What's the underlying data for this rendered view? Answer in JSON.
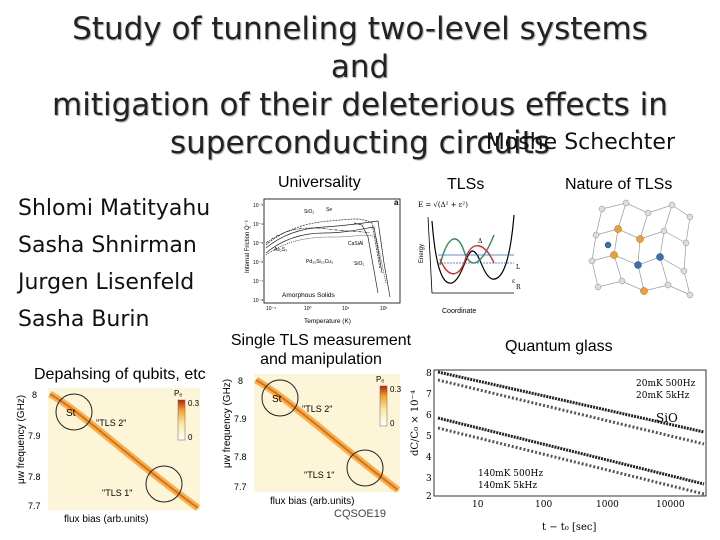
{
  "slide": {
    "title_line1": "Study of tunneling two-level systems and",
    "title_line2": "mitigation of their deleterious effects in",
    "title_line3": "superconducting circuits",
    "author": "Moshe Schechter",
    "coauthors": [
      "Shlomi Matityahu",
      "Sasha Shnirman",
      "Jurgen Lisenfeld",
      "Sasha Burin"
    ],
    "footer": "CQSOE19"
  },
  "labels": {
    "universality": "Universality",
    "tlss": "TLSs",
    "nature": "Nature of TLSs",
    "single_tls_line1": "Single TLS measurement",
    "single_tls_line2": "and manipulation",
    "dephasing": "Depahsing of qubits, etc",
    "quantum_glass": "Quantum glass"
  },
  "fig_universality": {
    "ylabel": "Internal Friction Q⁻¹",
    "xlabel": "Temperature (K)",
    "note": "Amorphous Solids",
    "panel_letter": "a",
    "yticks": [
      "10⁻³",
      "10⁻⁴",
      "10⁻⁵",
      "10⁻⁶",
      "10⁻⁷",
      "10⁻⁸"
    ],
    "xticks": [
      "10⁻¹",
      "10⁰",
      "10¹",
      "10²"
    ],
    "materials": [
      "SiO₂",
      "Se",
      "As₂S₃",
      "CaSiAl",
      "Pd₃₀Si₂₀Cu₃",
      "SiO₂"
    ]
  },
  "fig_tls": {
    "ylabel": "Energy",
    "xlabel": "Coordinate",
    "formula": "E = √(Δ² + ε²)",
    "marks": [
      "Δ",
      "ε",
      "L",
      "R"
    ]
  },
  "fig_spectroscopy": {
    "ylabel": "μw frequency (GHz)",
    "xlabel": "flux bias (arb.units)",
    "yticks": [
      "8",
      "7.9",
      "7.8",
      "7.7"
    ],
    "tls_top": "\"TLS 2\"",
    "tls_bottom": "\"TLS 1\"",
    "st_label": "St",
    "colorbar_label": "Pₑ",
    "colorbar_max": "0.3",
    "colorbar_min": "0"
  },
  "fig_glass": {
    "ylabel": "dC/C₀ × 10⁻⁴",
    "xlabel": "t − t₀ [sec]",
    "yticks": [
      "8",
      "7",
      "6",
      "5",
      "4",
      "3",
      "2"
    ],
    "xticks": [
      "10",
      "100",
      "1000",
      "10000"
    ],
    "material": "SiO",
    "legend_top": [
      "20mK 500Hz",
      "20mK 5kHz"
    ],
    "legend_bottom": [
      "140mK 500Hz",
      "140mK 5kHz"
    ]
  },
  "colors": {
    "text": "#111111",
    "title_shadow": "#aaaaaa",
    "heat_orange": "#f0a030",
    "heat_yellow": "#fbe9a8",
    "tls_green": "#2e8b57",
    "tls_red": "#d03030",
    "tls_blue": "#3060c0"
  }
}
